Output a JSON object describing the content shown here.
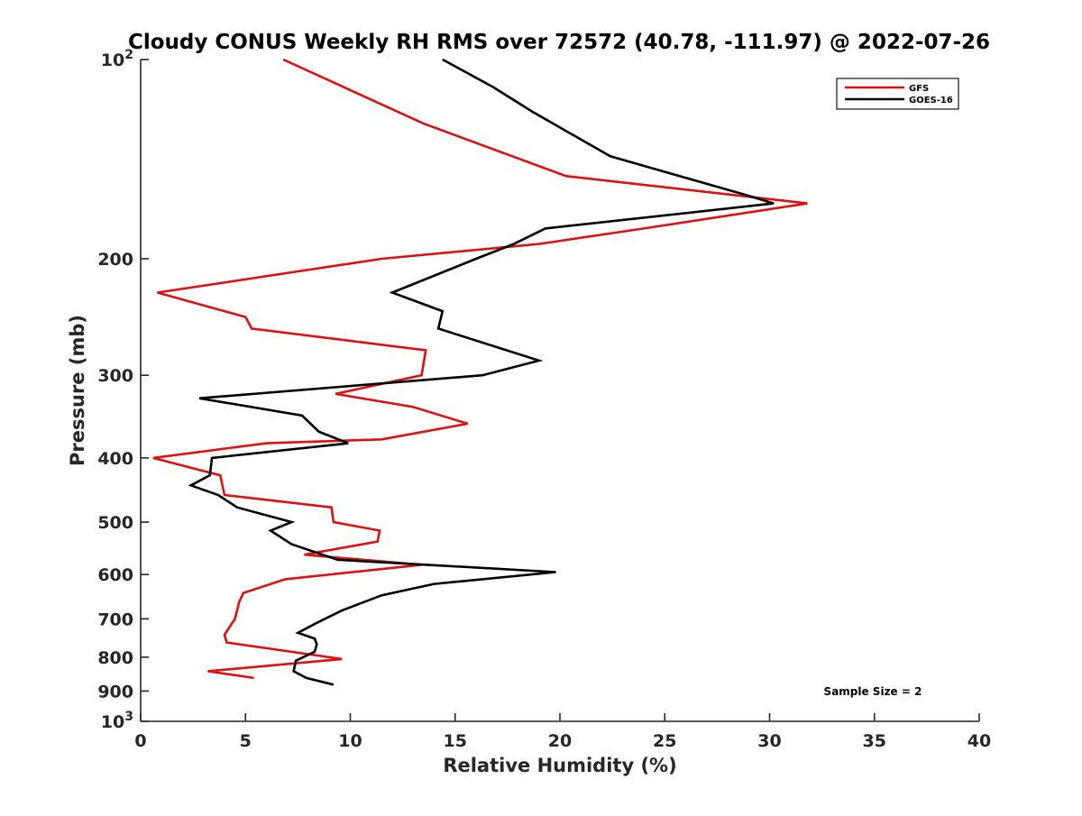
{
  "chart_data": {
    "type": "line",
    "title": "Cloudy CONUS Weekly RH RMS over 72572 (40.78, -111.97) @ 2022-07-26",
    "xlabel": "Relative Humidity (%)",
    "ylabel": "Pressure (mb)",
    "xlim": [
      0,
      40
    ],
    "ylim": [
      100,
      1000
    ],
    "y_scale": "log",
    "y_reversed": true,
    "x_ticks": [
      0,
      5,
      10,
      15,
      20,
      25,
      30,
      35,
      40
    ],
    "y_ticks": [
      {
        "value": 100,
        "base": "10",
        "exp": "2"
      },
      {
        "value": 200,
        "label": "200"
      },
      {
        "value": 300,
        "label": "300"
      },
      {
        "value": 400,
        "label": "400"
      },
      {
        "value": 500,
        "label": "500"
      },
      {
        "value": 600,
        "label": "600"
      },
      {
        "value": 700,
        "label": "700"
      },
      {
        "value": 800,
        "label": "800"
      },
      {
        "value": 900,
        "label": "900"
      },
      {
        "value": 1000,
        "base": "10",
        "exp": "3"
      }
    ],
    "grid": false,
    "legend_position": "top-right",
    "annotation": "Sample Size = 2",
    "series": [
      {
        "name": "GFS",
        "color": "#e01010",
        "points": [
          [
            6.8,
            100
          ],
          [
            13.5,
            125
          ],
          [
            20.3,
            150
          ],
          [
            31.8,
            165
          ],
          [
            24.0,
            180
          ],
          [
            19.0,
            190
          ],
          [
            11.5,
            200
          ],
          [
            0.8,
            225
          ],
          [
            5.0,
            245
          ],
          [
            5.3,
            255
          ],
          [
            13.6,
            275
          ],
          [
            13.4,
            300
          ],
          [
            9.3,
            320
          ],
          [
            13.0,
            335
          ],
          [
            15.6,
            355
          ],
          [
            11.5,
            375
          ],
          [
            6.0,
            380
          ],
          [
            0.6,
            400
          ],
          [
            3.8,
            425
          ],
          [
            3.9,
            440
          ],
          [
            4.0,
            455
          ],
          [
            9.1,
            475
          ],
          [
            9.2,
            500
          ],
          [
            11.4,
            515
          ],
          [
            11.3,
            535
          ],
          [
            7.8,
            560
          ],
          [
            13.4,
            580
          ],
          [
            6.9,
            610
          ],
          [
            4.9,
            640
          ],
          [
            4.7,
            660
          ],
          [
            4.5,
            700
          ],
          [
            4.0,
            740
          ],
          [
            4.1,
            760
          ],
          [
            9.6,
            805
          ],
          [
            3.2,
            840
          ],
          [
            5.4,
            860
          ]
        ]
      },
      {
        "name": "GOES-16",
        "color": "#000000",
        "points": [
          [
            14.4,
            100
          ],
          [
            16.8,
            110
          ],
          [
            18.7,
            120
          ],
          [
            22.4,
            140
          ],
          [
            28.8,
            160
          ],
          [
            30.2,
            165
          ],
          [
            19.3,
            180
          ],
          [
            17.8,
            190
          ],
          [
            16.0,
            200
          ],
          [
            12.0,
            225
          ],
          [
            14.4,
            240
          ],
          [
            14.2,
            255
          ],
          [
            19.0,
            285
          ],
          [
            16.3,
            300
          ],
          [
            2.8,
            325
          ],
          [
            7.7,
            345
          ],
          [
            8.5,
            365
          ],
          [
            9.9,
            380
          ],
          [
            3.4,
            400
          ],
          [
            3.3,
            425
          ],
          [
            2.4,
            440
          ],
          [
            3.7,
            455
          ],
          [
            4.6,
            475
          ],
          [
            7.2,
            500
          ],
          [
            6.2,
            515
          ],
          [
            7.2,
            540
          ],
          [
            9.4,
            570
          ],
          [
            19.8,
            595
          ],
          [
            14.0,
            620
          ],
          [
            11.5,
            645
          ],
          [
            9.6,
            680
          ],
          [
            8.4,
            710
          ],
          [
            7.5,
            735
          ],
          [
            8.3,
            750
          ],
          [
            8.4,
            765
          ],
          [
            8.3,
            785
          ],
          [
            7.4,
            810
          ],
          [
            7.3,
            840
          ],
          [
            7.9,
            860
          ],
          [
            9.2,
            880
          ]
        ]
      }
    ]
  }
}
